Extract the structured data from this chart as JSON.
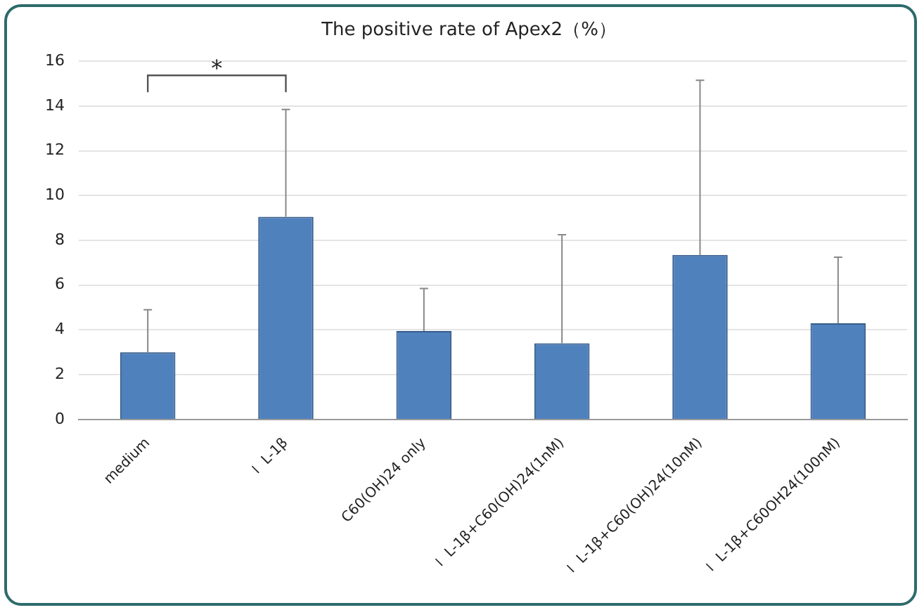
{
  "chart_data": {
    "type": "bar",
    "title": "The positive rate of Apex2（%）",
    "categories": [
      "medium",
      "Ｉ L-1β",
      "C60(OH)24 only",
      "Ｉ L-1β+C60(OH)24(1nM)",
      "Ｉ L-1β+C60(OH)24(10nM)",
      "Ｉ L-1β+C60OH24(100nM)"
    ],
    "values": [
      3.0,
      9.05,
      3.95,
      3.4,
      7.35,
      4.3
    ],
    "errors": [
      [
        3.0,
        4.9
      ],
      [
        9.05,
        13.85
      ],
      [
        3.95,
        5.85
      ],
      [
        3.4,
        8.25
      ],
      [
        7.35,
        15.15
      ],
      [
        4.3,
        7.25
      ]
    ],
    "color": "#4f81bd",
    "ylim": [
      0,
      16
    ],
    "yticks": [
      0,
      2,
      4,
      6,
      8,
      10,
      12,
      14,
      16
    ],
    "grid": "y",
    "annotations": [
      "*"
    ]
  }
}
